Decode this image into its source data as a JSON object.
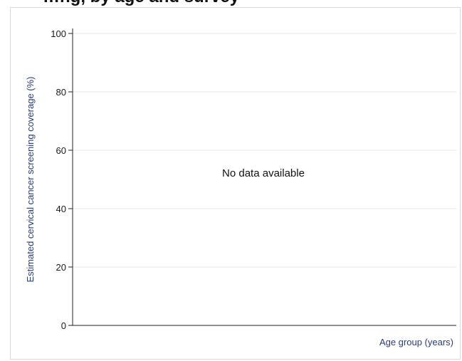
{
  "chart_data": {
    "type": "bar",
    "title": "…ng, by age and survey",
    "xlabel": "Age group (years)",
    "ylabel": "Estimated cervical cancer screening coverage (%)",
    "ylim": [
      0,
      100
    ],
    "yticks": [
      0,
      20,
      40,
      60,
      80,
      100
    ],
    "grid": true,
    "categories": [],
    "series": [],
    "message": "No data available"
  }
}
